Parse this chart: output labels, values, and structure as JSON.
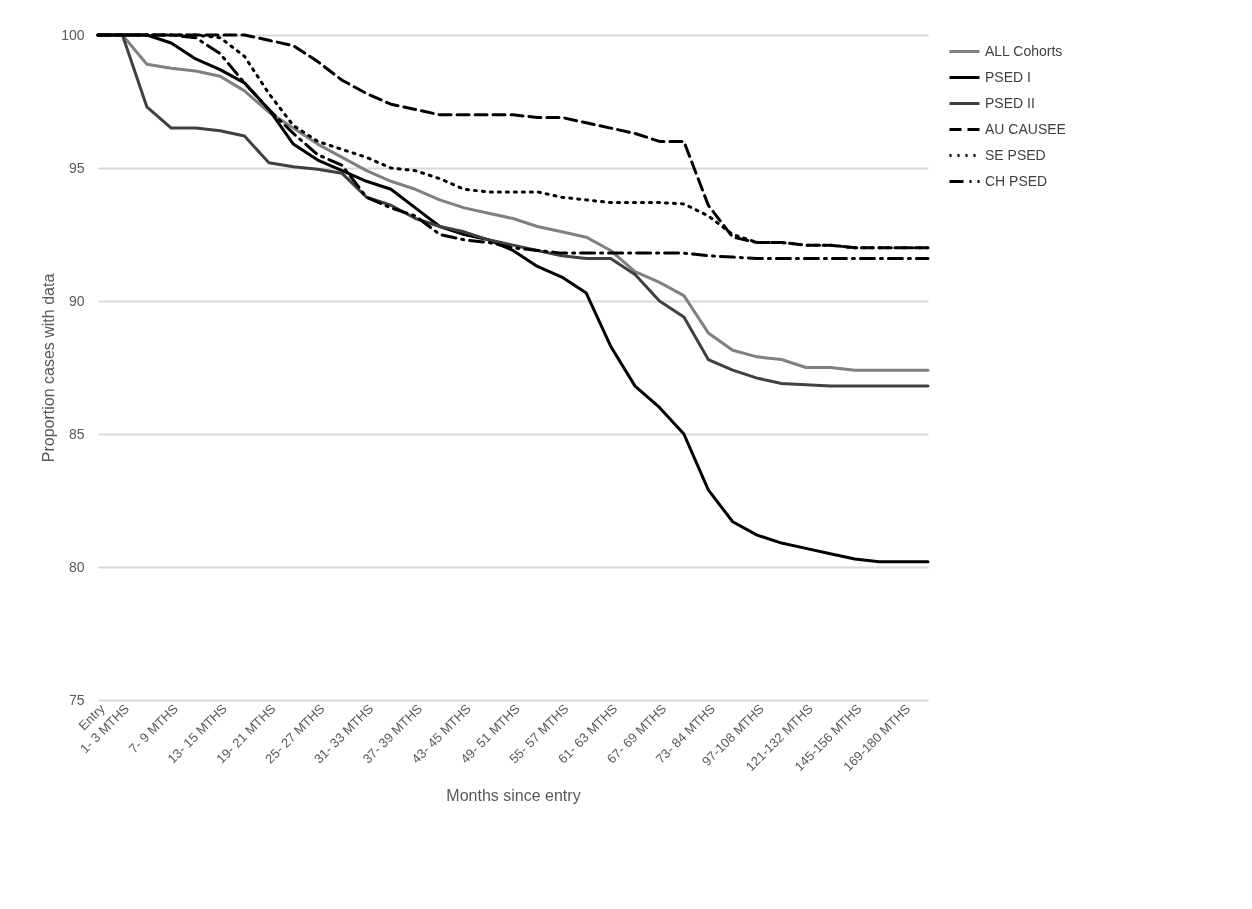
{
  "chart_data": {
    "type": "line",
    "xlabel": "Months since entry",
    "ylabel": "Proportion cases with data",
    "categories": [
      "Entry",
      "1- 3 MTHS",
      null,
      "7- 9 MTHS",
      null,
      "13- 15 MTHS",
      null,
      "19- 21 MTHS",
      null,
      "25- 27 MTHS",
      null,
      "31- 33 MTHS",
      null,
      "37- 39 MTHS",
      null,
      "43- 45 MTHS",
      null,
      "49- 51 MTHS",
      null,
      "55- 57 MTHS",
      null,
      "61- 63 MTHS",
      null,
      "67- 69 MTHS",
      null,
      "73- 84 MTHS",
      null,
      "97-108 MTHS",
      null,
      "121-132 MTHS",
      null,
      "145-156 MTHS",
      null,
      "169-180 MTHS",
      null
    ],
    "series": [
      {
        "name": "ALL Cohorts",
        "color": "#808080",
        "line_style": "solid",
        "values": [
          100,
          100,
          98.9,
          98.75,
          98.65,
          98.45,
          97.9,
          97.1,
          96.5,
          95.9,
          95.4,
          94.9,
          94.5,
          94.2,
          93.8,
          93.5,
          93.3,
          93.1,
          92.8,
          92.6,
          92.4,
          91.9,
          91.1,
          90.7,
          90.2,
          88.8,
          88.15,
          87.9,
          87.8,
          87.5,
          87.5,
          87.4,
          87.4,
          87.4,
          87.4
        ]
      },
      {
        "name": "PSED I",
        "color": "#000000",
        "line_style": "solid",
        "values": [
          100,
          100,
          100,
          99.7,
          99.1,
          98.7,
          98.2,
          97.2,
          95.9,
          95.3,
          94.9,
          94.5,
          94.2,
          93.5,
          92.8,
          92.5,
          92.3,
          91.9,
          91.3,
          90.9,
          90.3,
          88.3,
          86.8,
          86.0,
          85.0,
          82.9,
          81.7,
          81.2,
          80.9,
          80.7,
          80.5,
          80.3,
          80.2,
          80.2,
          80.2
        ]
      },
      {
        "name": "PSED II",
        "color": "#404040",
        "line_style": "solid",
        "values": [
          100,
          100,
          97.3,
          96.5,
          96.5,
          96.4,
          96.2,
          95.2,
          95.05,
          94.95,
          94.8,
          93.9,
          93.6,
          93.1,
          92.8,
          92.6,
          92.3,
          92.1,
          91.9,
          91.7,
          91.6,
          91.6,
          91.0,
          90.0,
          89.4,
          87.8,
          87.4,
          87.1,
          86.9,
          86.85,
          86.8,
          86.8,
          86.8,
          86.8,
          86.8
        ]
      },
      {
        "name": "AU CAUSEE",
        "color": "#000000",
        "line_style": "dashed",
        "values": [
          100,
          100,
          100,
          100,
          100,
          100,
          100,
          99.8,
          99.6,
          99.0,
          98.3,
          97.8,
          97.4,
          97.2,
          97.0,
          97.0,
          97.0,
          97.0,
          96.9,
          96.9,
          96.7,
          96.5,
          96.3,
          96.0,
          96.0,
          93.6,
          92.4,
          92.2,
          92.2,
          92.1,
          92.1,
          92.0,
          92.0,
          92.0,
          92.0
        ]
      },
      {
        "name": "SE PSED",
        "color": "#000000",
        "line_style": "dotted",
        "values": [
          100,
          100,
          100,
          100,
          100,
          99.9,
          99.2,
          97.8,
          96.6,
          96.0,
          95.7,
          95.4,
          95.0,
          94.9,
          94.6,
          94.2,
          94.1,
          94.1,
          94.1,
          93.9,
          93.8,
          93.7,
          93.7,
          93.7,
          93.65,
          93.2,
          92.5,
          92.2,
          92.2,
          92.1,
          92.1,
          92.0,
          92.0,
          92.0,
          92.0
        ]
      },
      {
        "name": "CH PSED",
        "color": "#000000",
        "line_style": "dashdot",
        "values": [
          100,
          100,
          100,
          100,
          99.9,
          99.3,
          98.2,
          97.2,
          96.3,
          95.5,
          95.1,
          93.9,
          93.5,
          93.2,
          92.5,
          92.3,
          92.2,
          92.0,
          91.9,
          91.8,
          91.8,
          91.8,
          91.8,
          91.8,
          91.8,
          91.7,
          91.65,
          91.6,
          91.6,
          91.6,
          91.6,
          91.6,
          91.6,
          91.6,
          91.6
        ]
      }
    ],
    "ylim": [
      75,
      100
    ],
    "yticks": [
      75,
      80,
      85,
      90,
      95,
      100
    ],
    "grid": "y",
    "legend": "right"
  }
}
